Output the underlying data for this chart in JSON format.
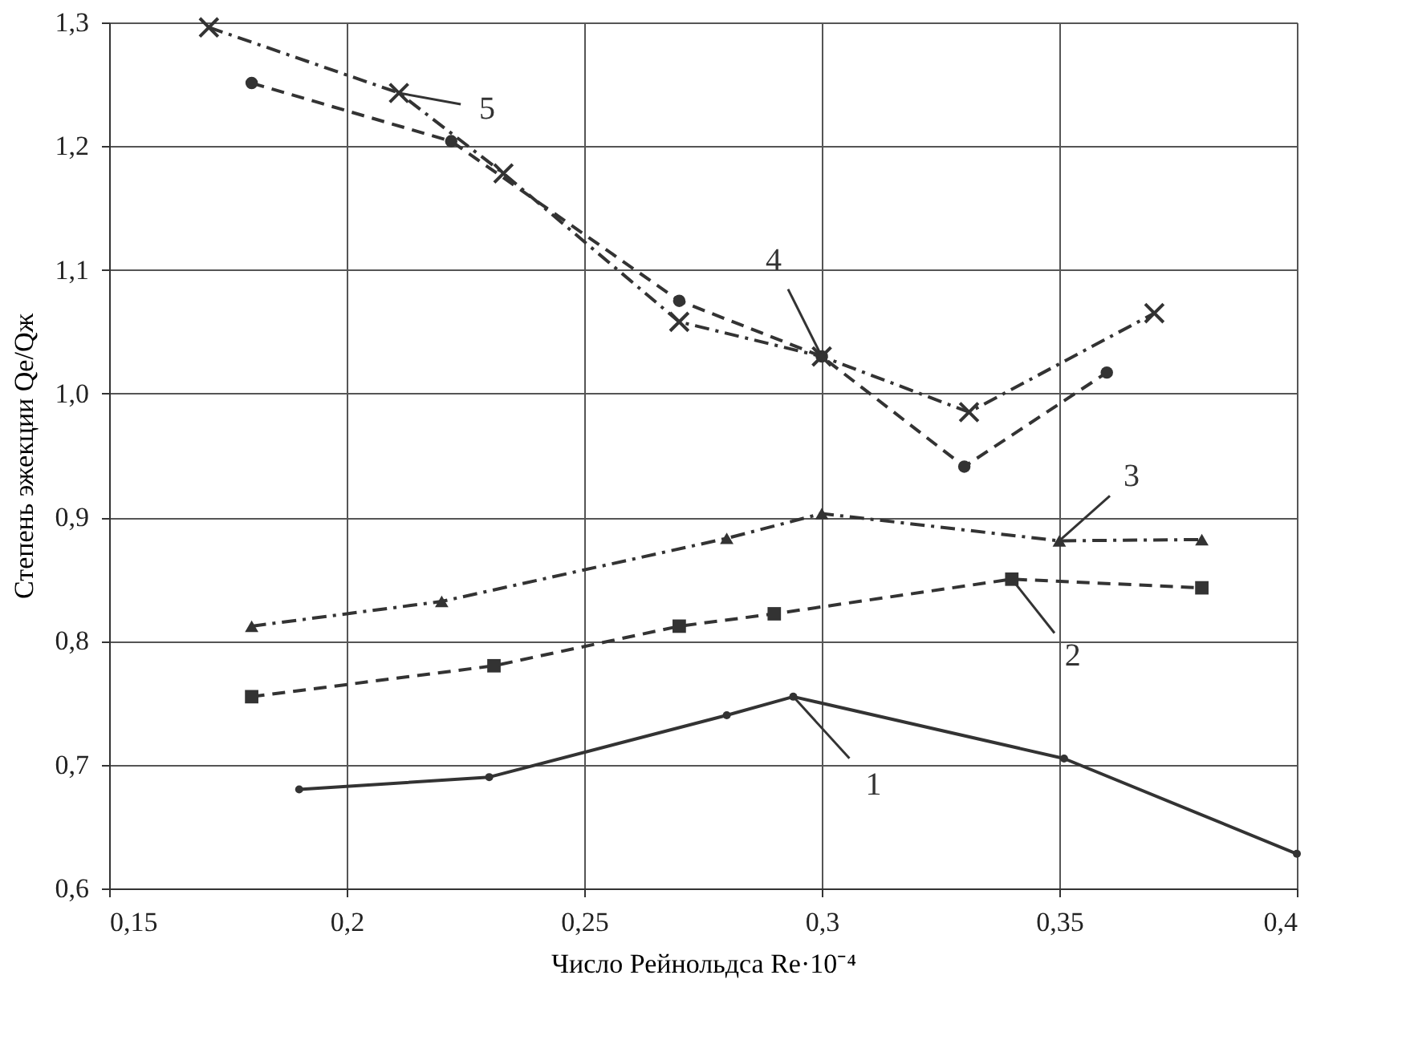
{
  "chart_data": {
    "type": "line",
    "xlabel": "Число Рейнольдса Re·10⁻⁴",
    "ylabel": "Степень эжекции Qe/Qж",
    "xlim": [
      0.15,
      0.4
    ],
    "ylim": [
      0.6,
      1.3
    ],
    "xticks": [
      {
        "value": 0.15,
        "label": "0,15"
      },
      {
        "value": 0.2,
        "label": "0,2"
      },
      {
        "value": 0.25,
        "label": "0,25"
      },
      {
        "value": 0.3,
        "label": "0,3"
      },
      {
        "value": 0.35,
        "label": "0,35"
      },
      {
        "value": 0.4,
        "label": "0,4"
      }
    ],
    "yticks": [
      {
        "value": 0.6,
        "label": "0,6"
      },
      {
        "value": 0.7,
        "label": "0,7"
      },
      {
        "value": 0.8,
        "label": "0,8"
      },
      {
        "value": 0.9,
        "label": "0,9"
      },
      {
        "value": 1.0,
        "label": "1,0"
      },
      {
        "value": 1.1,
        "label": "1,1"
      },
      {
        "value": 1.2,
        "label": "1,2"
      },
      {
        "value": 1.3,
        "label": "1,3"
      }
    ],
    "grid": true,
    "series": [
      {
        "name": "1",
        "color": "#333333",
        "marker": "circle",
        "line_style": "solid",
        "x": [
          0.19,
          0.23,
          0.28,
          0.294,
          0.351,
          0.4
        ],
        "values": [
          0.68,
          0.69,
          0.74,
          0.755,
          0.705,
          0.628
        ]
      },
      {
        "name": "2",
        "color": "#333333",
        "marker": "square",
        "line_style": "dashed",
        "x": [
          0.18,
          0.231,
          0.27,
          0.29,
          0.34,
          0.38
        ],
        "values": [
          0.755,
          0.78,
          0.812,
          0.822,
          0.85,
          0.843
        ]
      },
      {
        "name": "3",
        "color": "#333333",
        "marker": "triangle",
        "line_style": "dashdot",
        "x": [
          0.18,
          0.22,
          0.28,
          0.3,
          0.35,
          0.38
        ],
        "values": [
          0.812,
          0.832,
          0.883,
          0.903,
          0.881,
          0.882
        ]
      },
      {
        "name": "4",
        "color": "#333333",
        "marker": "circle",
        "line_style": "dashed",
        "x": [
          0.18,
          0.222,
          0.27,
          0.3,
          0.33,
          0.36
        ],
        "values": [
          1.251,
          1.204,
          1.075,
          1.03,
          0.941,
          1.017
        ]
      },
      {
        "name": "5",
        "color": "#333333",
        "marker": "cross",
        "line_style": "dashdot",
        "x": [
          0.171,
          0.211,
          0.233,
          0.27,
          0.3,
          0.331,
          0.37
        ],
        "values": [
          1.296,
          1.243,
          1.178,
          1.058,
          1.03,
          0.985,
          1.065
        ]
      }
    ]
  }
}
